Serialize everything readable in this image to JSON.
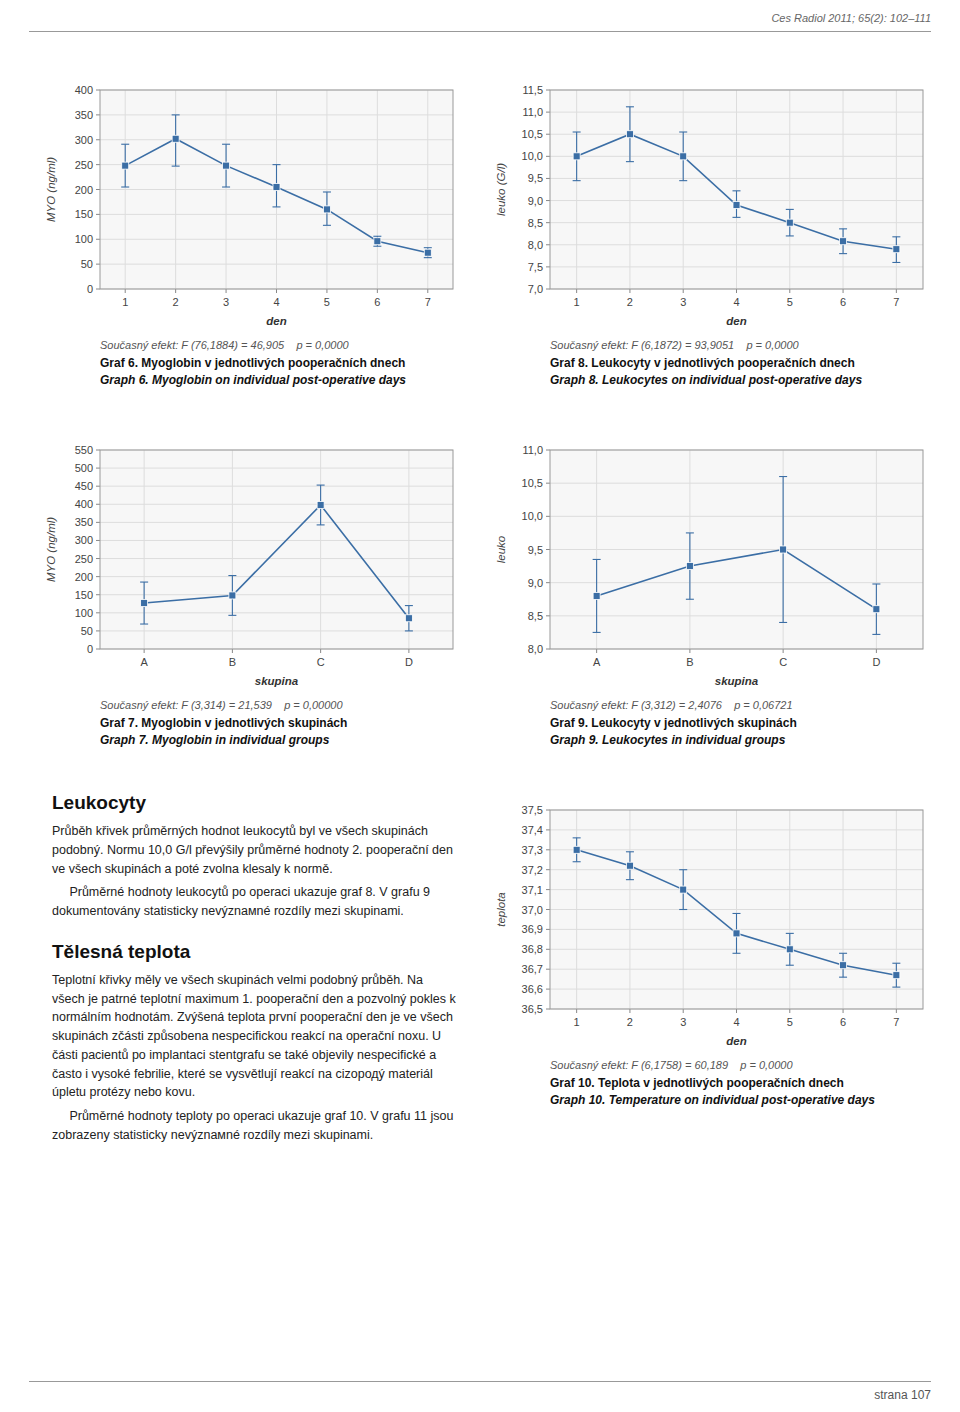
{
  "header": "Ces Radiol 2011; 65(2): 102–111",
  "footer": "strana 107",
  "text_sections": [
    {
      "title": "Leukocyty",
      "paragraphs": [
        "Průběh křivek průměrných hodnot leukocytů byl ve všech skupinách podobný. Normu 10,0 G/l převýšily průměrné hodnoty 2. pooperační den ve všech skupinách a poté zvolna klesaly k normě.",
        "     Průměrné hodnoty leukocytů po operaci ukazuje graf 8. V grafu 9 dokumentovány statisticky nevýznамné rozdíly mezi skupinami."
      ]
    },
    {
      "title": "Tělesná teplota",
      "paragraphs": [
        "Teplotní křivky měly ve všech skupinách velmi podobný průběh. Na všech je patrné teplotní maximum 1. pooperační den a pozvolný pokles k normálním hodnotám. Zvýšená teplota první pooperační den je ve všech skupinách zčásti způsobena nespecifickou reakcí na operační noxu. U části pacientů po implantaci stentgrafu se také objevily nespecifické a často i vysoké febrilie, které se vysvětlují reakcí na cizородý materiál úpletu protézy nebo kovu.",
        "     Průměrné hodnoty teploty po operaci ukazuje graf 10. V grafu 11 jsou zobrazeny statisticky nevýznамné rozdíly mezi skupinami."
      ]
    }
  ],
  "chart_data": [
    {
      "type": "line",
      "title": "Graf 6. Myoglobin v jednotlivých pooperačních dnech",
      "title_en": "Graph 6. Myoglobin on individual post-operative days",
      "subtitle": "Současný efekt: F (76,1884) = 46,905    p = 0,0000",
      "xlabel": "den",
      "ylabel": "MYO (ng/ml)",
      "x": [
        1,
        2,
        3,
        4,
        5,
        6,
        7
      ],
      "values": [
        248,
        302,
        248,
        205,
        160,
        96,
        73
      ],
      "error_minus": [
        43,
        55,
        43,
        40,
        32,
        10,
        10
      ],
      "error_plus": [
        43,
        48,
        43,
        45,
        35,
        10,
        10
      ],
      "xlim": [
        0.5,
        7.5
      ],
      "xticks": [
        1,
        2,
        3,
        4,
        5,
        6,
        7
      ],
      "ylim": [
        0,
        400
      ],
      "yticks": [
        0,
        50,
        100,
        150,
        200,
        250,
        300,
        350,
        400
      ],
      "grid": true,
      "marker": "square",
      "color": "#3b6ea5"
    },
    {
      "type": "line",
      "title": "Graf 8. Leukocyty v jednotlivých pooperačních dnech",
      "title_en": "Graph 8. Leukocytes on individual post-operative days",
      "subtitle": "Současný efekt: F (6,1872) = 93,9051    p = 0,0000",
      "xlabel": "den",
      "ylabel": "leuko (G/l)",
      "x": [
        1,
        2,
        3,
        4,
        5,
        6,
        7
      ],
      "values": [
        10.0,
        10.5,
        10.0,
        8.9,
        8.5,
        8.08,
        7.9
      ],
      "error_minus": [
        0.55,
        0.62,
        0.55,
        0.28,
        0.3,
        0.28,
        0.3
      ],
      "error_plus": [
        0.55,
        0.62,
        0.55,
        0.32,
        0.3,
        0.28,
        0.28
      ],
      "xlim": [
        0.5,
        7.5
      ],
      "xticks": [
        1,
        2,
        3,
        4,
        5,
        6,
        7
      ],
      "ylim": [
        7.0,
        11.5
      ],
      "yticks": [
        {
          "value": 7.0,
          "label": "7,0"
        },
        {
          "value": 7.5,
          "label": "7,5"
        },
        {
          "value": 8.0,
          "label": "8,0"
        },
        {
          "value": 8.5,
          "label": "8,5"
        },
        {
          "value": 9.0,
          "label": "9,0"
        },
        {
          "value": 9.5,
          "label": "9,5"
        },
        {
          "value": 10.0,
          "label": "10,0"
        },
        {
          "value": 10.5,
          "label": "10,5"
        },
        {
          "value": 11.0,
          "label": "11,0"
        },
        {
          "value": 11.5,
          "label": "11,5"
        }
      ],
      "grid": true,
      "marker": "square",
      "color": "#3b6ea5"
    },
    {
      "type": "line",
      "title": "Graf 7. Myoglobin v jednotlivých skupinách",
      "title_en": "Graph 7. Myoglobin in individual groups",
      "subtitle": "Současný efekt: F (3,314) = 21,539    p = 0,00000",
      "xlabel": "skupina",
      "ylabel": "MYO (ng/ml)",
      "categories": [
        "A",
        "B",
        "C",
        "D"
      ],
      "values": [
        127,
        148,
        398,
        85
      ],
      "error_minus": [
        58,
        55,
        55,
        35
      ],
      "error_plus": [
        58,
        55,
        55,
        35
      ],
      "ylim": [
        0,
        550
      ],
      "yticks": [
        0,
        50,
        100,
        150,
        200,
        250,
        300,
        350,
        400,
        450,
        500,
        550
      ],
      "grid": true,
      "marker": "square",
      "color": "#3b6ea5"
    },
    {
      "type": "line",
      "title": "Graf 9. Leukocyty v jednotlivých skupinách",
      "title_en": "Graph 9. Leukocytes in individual groups",
      "subtitle": "Současný efekt: F (3,312) = 2,4076    p = 0,06721",
      "xlabel": "skupina",
      "ylabel": "leuko",
      "categories": [
        "A",
        "B",
        "C",
        "D"
      ],
      "values": [
        8.8,
        9.25,
        9.5,
        8.6
      ],
      "error_minus": [
        0.55,
        0.5,
        1.1,
        0.38
      ],
      "error_plus": [
        0.55,
        0.5,
        1.1,
        0.38
      ],
      "ylim": [
        8.0,
        11.0
      ],
      "yticks": [
        {
          "value": 8.0,
          "label": "8,0"
        },
        {
          "value": 8.5,
          "label": "8,5"
        },
        {
          "value": 9.0,
          "label": "9,0"
        },
        {
          "value": 9.5,
          "label": "9,5"
        },
        {
          "value": 10.0,
          "label": "10,0"
        },
        {
          "value": 10.5,
          "label": "10,5"
        },
        {
          "value": 11.0,
          "label": "11,0"
        }
      ],
      "grid": true,
      "marker": "square",
      "color": "#3b6ea5"
    },
    {
      "type": "line",
      "title": "Graf 10. Teplota v jednotlivých pooperačních dnech",
      "title_en": "Graph 10. Temperature on individual post-operative days",
      "subtitle": "Současný efekt: F (6,1758) = 60,189    p = 0,0000",
      "xlabel": "den",
      "ylabel": "teplota",
      "x": [
        1,
        2,
        3,
        4,
        5,
        6,
        7
      ],
      "values": [
        37.3,
        37.22,
        37.1,
        36.88,
        36.8,
        36.72,
        36.67
      ],
      "error_minus": [
        0.06,
        0.07,
        0.1,
        0.1,
        0.08,
        0.06,
        0.06
      ],
      "error_plus": [
        0.06,
        0.07,
        0.1,
        0.1,
        0.08,
        0.06,
        0.06
      ],
      "xlim": [
        0.5,
        7.5
      ],
      "xticks": [
        1,
        2,
        3,
        4,
        5,
        6,
        7
      ],
      "ylim": [
        36.5,
        37.5
      ],
      "yticks": [
        {
          "value": 36.5,
          "label": "36,5"
        },
        {
          "value": 36.6,
          "label": "36,6"
        },
        {
          "value": 36.7,
          "label": "36,7"
        },
        {
          "value": 36.8,
          "label": "36,8"
        },
        {
          "value": 36.9,
          "label": "36,9"
        },
        {
          "value": 37.0,
          "label": "37,0"
        },
        {
          "value": 37.1,
          "label": "37,1"
        },
        {
          "value": 37.2,
          "label": "37,2"
        },
        {
          "value": 37.3,
          "label": "37,3"
        },
        {
          "value": 37.4,
          "label": "37,4"
        },
        {
          "value": 37.5,
          "label": "37,5"
        }
      ],
      "grid": true,
      "marker": "square",
      "color": "#3b6ea5"
    }
  ]
}
